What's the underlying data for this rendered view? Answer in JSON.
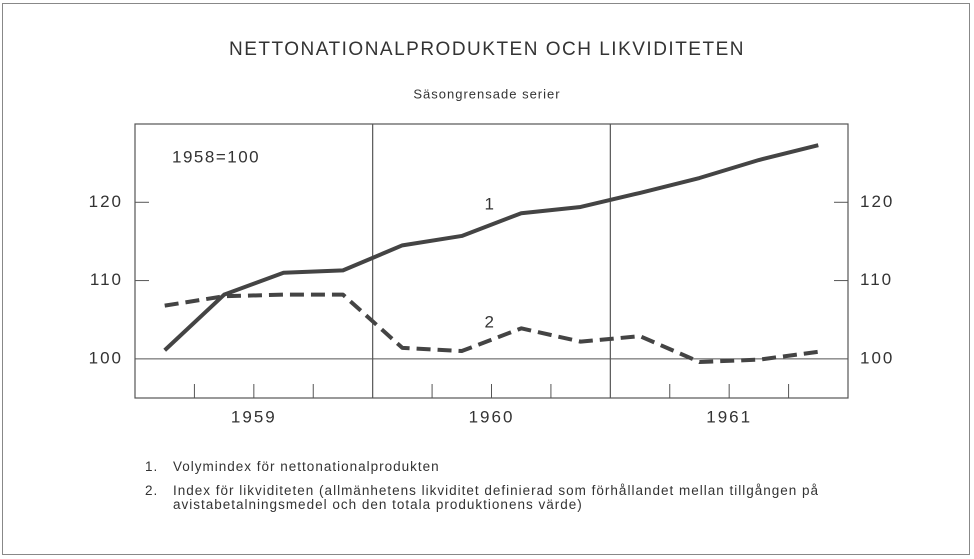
{
  "chart_data": {
    "type": "line",
    "title": "NETTONATIONALPRODUKTEN OCH LIKVIDITETEN",
    "subtitle": "Säsongrensade serier",
    "annotations": [
      "1958=100"
    ],
    "x": [
      1959.125,
      1959.375,
      1959.625,
      1959.875,
      1960.125,
      1960.375,
      1960.625,
      1960.875,
      1961.125,
      1961.375,
      1961.625,
      1961.875
    ],
    "xlim": [
      1959,
      1962
    ],
    "xticks": [
      {
        "value": 1959.5,
        "label": "1959"
      },
      {
        "value": 1960.5,
        "label": "1960"
      },
      {
        "value": 1961.5,
        "label": "1961"
      }
    ],
    "xminorticks": [
      1959.25,
      1959.5,
      1959.75,
      1960.25,
      1960.5,
      1960.75,
      1961.25,
      1961.5,
      1961.75
    ],
    "xgrid": [
      1960,
      1961
    ],
    "ylim": [
      95,
      130
    ],
    "yticks": [
      100,
      110,
      120
    ],
    "series": [
      {
        "name": "1",
        "color": "#444",
        "dash": false,
        "values": [
          101.1,
          108.2,
          111.0,
          111.3,
          114.5,
          115.7,
          118.6,
          119.4,
          121.2,
          123.1,
          125.4,
          127.3
        ]
      },
      {
        "name": "2",
        "color": "#444",
        "dash": true,
        "values": [
          106.8,
          108.0,
          108.2,
          108.2,
          101.4,
          101.0,
          103.9,
          102.2,
          102.9,
          99.6,
          99.9,
          100.9
        ]
      }
    ],
    "notes": [
      {
        "number": "1.",
        "text": "Volymindex för nettonationalprodukten"
      },
      {
        "number": "2.",
        "text": "Index för likviditeten (allmänhetens likviditet definierad som förhållandet mellan tillgången på avistabetalningsmedel och den totala produktionens värde)"
      }
    ]
  }
}
